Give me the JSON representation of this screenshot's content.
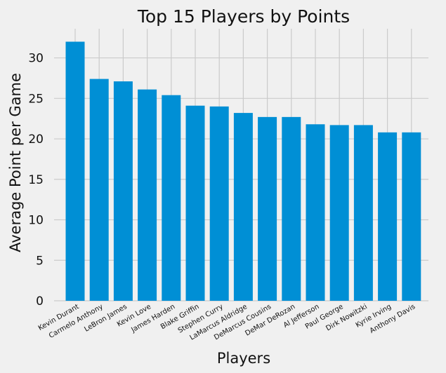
{
  "chart_data": {
    "type": "bar",
    "title": "Top 15 Players by Points",
    "xlabel": "Players",
    "ylabel": "Average Point per Game",
    "ylim": [
      0,
      33.6
    ],
    "yticks": [
      0,
      5,
      10,
      15,
      20,
      25,
      30
    ],
    "grid": true,
    "bar_color": "#008fd5",
    "background_color": "#f0f0f0",
    "grid_color": "#cbcbcb",
    "categories": [
      "Kevin Durant",
      "Carmelo Anthony",
      "LeBron James",
      "Kevin Love",
      "James Harden",
      "Blake Griffin",
      "Stephen Curry",
      "LaMarcus Aldridge",
      "DeMarcus Cousins",
      "DeMar DeRozan",
      "Al Jefferson",
      "Paul George",
      "Dirk Nowitzki",
      "Kyrie Irving",
      "Anthony Davis"
    ],
    "values": [
      32.0,
      27.4,
      27.1,
      26.1,
      25.4,
      24.1,
      24.0,
      23.2,
      22.7,
      22.7,
      21.8,
      21.7,
      21.7,
      20.8,
      20.8
    ]
  }
}
